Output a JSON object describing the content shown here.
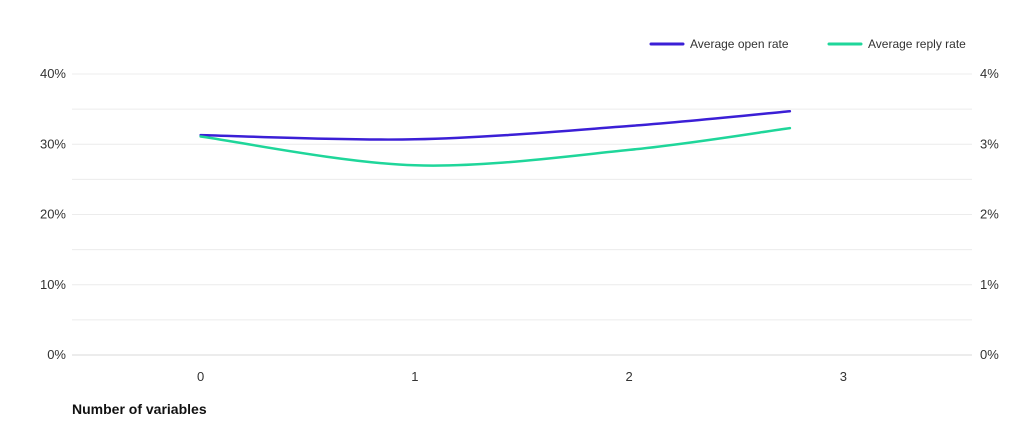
{
  "chart_data": {
    "type": "line",
    "xlabel": "Number of variables",
    "x_ticks": [
      "0",
      "1",
      "2",
      "3"
    ],
    "x": [
      0,
      1,
      2,
      2.75
    ],
    "xlim": [
      -0.6,
      3.6
    ],
    "y_left": {
      "ticks": [
        "0%",
        "10%",
        "20%",
        "30%",
        "40%"
      ],
      "ylim": [
        0,
        40
      ]
    },
    "y_right": {
      "ticks": [
        "0%",
        "1%",
        "2%",
        "3%",
        "4%"
      ],
      "ylim": [
        0,
        4
      ]
    },
    "grid": true,
    "legend_position": "top-right",
    "series": [
      {
        "name": "Average open rate",
        "axis": "left",
        "color": "#3b1fd6",
        "values": [
          31.3,
          30.7,
          32.6,
          34.7
        ]
      },
      {
        "name": "Average reply rate",
        "axis": "right",
        "color": "#1fd69a",
        "values": [
          3.11,
          2.7,
          2.92,
          3.23
        ]
      }
    ]
  }
}
